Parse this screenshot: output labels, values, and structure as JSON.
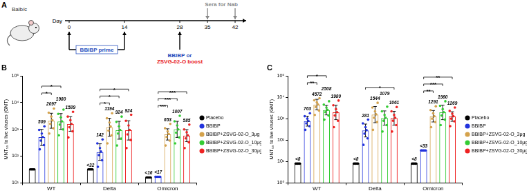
{
  "diagram": {
    "title": "A",
    "subject": "Balb/c",
    "axis_label": "Day",
    "days": [
      0,
      14,
      28,
      35,
      42
    ],
    "sera": {
      "label": "Sera for Nab",
      "days": [
        35,
        42
      ],
      "color": "#888888"
    },
    "prime": {
      "label": "BBIBP prime",
      "days": [
        0,
        14
      ],
      "color": "#2a52be"
    },
    "boost": {
      "day": 28,
      "lines": [
        {
          "text": "BBIBP or",
          "color": "#2a52be"
        },
        {
          "text": "ZSVG-02-O boost",
          "color": "#e8201a"
        }
      ]
    }
  },
  "chart_data": [
    {
      "type": "bar",
      "title": "B",
      "categories": [
        "WT",
        "Delta",
        "Omicron"
      ],
      "y_label": "MNT₅₀ to live viruses (GMT)",
      "log": "y",
      "grid": false,
      "legend": "right",
      "data_labels": true,
      "ylim": [
        10,
        100000
      ],
      "yticks": [
        {
          "value": 10,
          "label": "10¹"
        },
        {
          "value": 100,
          "label": "10²"
        },
        {
          "value": 1000,
          "label": "10³"
        },
        {
          "value": 10000,
          "label": "10⁴"
        },
        {
          "value": 100000,
          "label": "10⁵"
        }
      ],
      "series": [
        {
          "name": "Placebo",
          "color": "#000000",
          "values": [
            32,
            32,
            16
          ],
          "value_labels": [
            null,
            "<32",
            "<16"
          ],
          "points": [
            [
              32,
              32,
              32,
              32,
              32
            ],
            [
              32,
              32,
              32,
              32,
              32
            ],
            [
              16,
              16,
              16,
              16,
              16
            ]
          ]
        },
        {
          "name": "BBIBP",
          "color": "#2233dd",
          "values": [
            509,
            142,
            17
          ],
          "value_labels": [
            "509",
            "142",
            "<17"
          ],
          "error_low": [
            250,
            70,
            null
          ],
          "error_high": [
            1000,
            290,
            null
          ],
          "points": [
            [
              180,
              260,
              380,
              520,
              700,
              950,
              1300
            ],
            [
              40,
              70,
              110,
              150,
              200,
              300,
              420
            ],
            [
              17,
              17,
              17,
              17,
              17,
              17
            ]
          ]
        },
        {
          "name": "BBIBP+ZSVG-02-O_3μg",
          "color": "#d4a24c",
          "values": [
            2097,
            1194,
            653
          ],
          "error_low": [
            1100,
            550,
            400
          ],
          "error_high": [
            4000,
            2600,
            1050
          ],
          "points": [
            [
              700,
              1100,
              1600,
              2200,
              3000,
              4200,
              6000
            ],
            [
              300,
              600,
              900,
              1300,
              1800,
              2600,
              4000
            ],
            [
              250,
              380,
              520,
              680,
              850,
              1100,
              1600
            ]
          ]
        },
        {
          "name": "BBIBP+ZSVG-02-O_10μg",
          "color": "#33cc33",
          "values": [
            1980,
            924,
            1007
          ],
          "error_low": [
            1000,
            430,
            500
          ],
          "error_high": [
            3900,
            2000,
            2000
          ],
          "points": [
            [
              600,
              1000,
              1500,
              2000,
              2800,
              3800,
              5500
            ],
            [
              250,
              450,
              700,
              950,
              1300,
              1900,
              3000
            ],
            [
              300,
              500,
              750,
              1000,
              1400,
              2000,
              3200
            ]
          ]
        },
        {
          "name": "BBIBP+ZSVG-02-O_30μg",
          "color": "#ee2222",
          "values": [
            1589,
            924,
            585
          ],
          "error_low": [
            850,
            400,
            350
          ],
          "error_high": [
            3000,
            2100,
            980
          ],
          "points": [
            [
              500,
              850,
              1200,
              1600,
              2200,
              3000,
              4500
            ],
            [
              200,
              400,
              650,
              950,
              1400,
              2100,
              3500
            ],
            [
              200,
              330,
              460,
              600,
              780,
              1000,
              1500
            ]
          ]
        }
      ],
      "significance": [
        {
          "category": "WT",
          "from": "BBIBP",
          "to": "BBIBP+ZSVG-02-O_3μg",
          "label": "*"
        },
        {
          "category": "WT",
          "from": "BBIBP",
          "to": "BBIBP+ZSVG-02-O_10μg",
          "label": "*"
        },
        {
          "category": "Delta",
          "from": "BBIBP",
          "to": "BBIBP+ZSVG-02-O_3μg",
          "label": "*"
        },
        {
          "category": "Delta",
          "from": "BBIBP",
          "to": "BBIBP+ZSVG-02-O_10μg",
          "label": "*"
        },
        {
          "category": "Delta",
          "from": "BBIBP",
          "to": "BBIBP+ZSVG-02-O_30μg",
          "label": "*"
        },
        {
          "category": "Omicron",
          "from": "BBIBP",
          "to": "BBIBP+ZSVG-02-O_3μg",
          "label": "***"
        },
        {
          "category": "Omicron",
          "from": "BBIBP",
          "to": "BBIBP+ZSVG-02-O_10μg",
          "label": "***"
        },
        {
          "category": "Omicron",
          "from": "BBIBP",
          "to": "BBIBP+ZSVG-02-O_30μg",
          "label": "***"
        }
      ]
    },
    {
      "type": "bar",
      "title": "C",
      "categories": [
        "WT",
        "Delta",
        "Omicron"
      ],
      "y_label": "MNT₅₀ to live viruses (GMT)",
      "log": "y",
      "grid": false,
      "legend": "right",
      "data_labels": true,
      "ylim": [
        1,
        100000
      ],
      "yticks": [
        {
          "value": 1,
          "label": "10⁰"
        },
        {
          "value": 10,
          "label": "10¹"
        },
        {
          "value": 100,
          "label": "10²"
        },
        {
          "value": 1000,
          "label": "10³"
        },
        {
          "value": 10000,
          "label": "10⁴"
        },
        {
          "value": 100000,
          "label": "10⁵"
        }
      ],
      "series": [
        {
          "name": "Placebo",
          "color": "#000000",
          "values": [
            8,
            8,
            8
          ],
          "value_labels": [
            "<8",
            "<8",
            "<8"
          ],
          "points": [
            [
              8,
              8,
              8,
              8,
              8
            ],
            [
              8,
              8,
              8,
              8,
              8
            ],
            [
              8,
              8,
              8,
              8,
              8
            ]
          ]
        },
        {
          "name": "BBIBP",
          "color": "#2233dd",
          "values": [
            763,
            281,
            33
          ],
          "value_labels": [
            "763",
            "281",
            "<33"
          ],
          "error_low": [
            450,
            140,
            null
          ],
          "error_high": [
            1300,
            560,
            null
          ],
          "points": [
            [
              300,
              450,
              600,
              780,
              1000,
              1300,
              1800
            ],
            [
              60,
              120,
              200,
              290,
              400,
              600,
              900
            ],
            [
              33,
              33,
              33,
              33,
              33,
              33
            ]
          ]
        },
        {
          "name": "BBIBP+ZSVG-02-O_3μg",
          "color": "#d4a24c",
          "values": [
            4572,
            1544,
            1291
          ],
          "error_low": [
            2600,
            650,
            700
          ],
          "error_high": [
            8000,
            3700,
            2400
          ],
          "points": [
            [
              1500,
              2400,
              3500,
              4600,
              5800,
              7200,
              9000
            ],
            [
              300,
              700,
              1100,
              1600,
              2200,
              3300,
              5500
            ],
            [
              400,
              700,
              1000,
              1300,
              1800,
              2500,
              3800
            ]
          ]
        },
        {
          "name": "BBIBP+ZSVG-02-O_10μg",
          "color": "#33cc33",
          "values": [
            2508,
            1079,
            1980
          ],
          "error_low": [
            1500,
            500,
            900
          ],
          "error_high": [
            4200,
            2300,
            4300
          ],
          "points": [
            [
              900,
              1400,
              2000,
              2600,
              3300,
              4500,
              6500
            ],
            [
              250,
              500,
              800,
              1100,
              1500,
              2200,
              3600
            ],
            [
              500,
              900,
              1400,
              2000,
              2800,
              4000,
              6500
            ]
          ]
        },
        {
          "name": "BBIBP+ZSVG-02-O_30μg",
          "color": "#ee2222",
          "values": [
            1980,
            1061,
            1269
          ],
          "error_low": [
            900,
            500,
            750
          ],
          "error_high": [
            4300,
            2200,
            2100
          ],
          "points": [
            [
              400,
              800,
              1400,
              2000,
              2800,
              4200,
              7000
            ],
            [
              250,
              500,
              800,
              1100,
              1500,
              2200,
              3500
            ],
            [
              450,
              750,
              1000,
              1300,
              1700,
              2300,
              3300
            ]
          ]
        }
      ],
      "significance": [
        {
          "category": "WT",
          "from": "BBIBP",
          "to": "BBIBP+ZSVG-02-O_3μg",
          "label": "**"
        },
        {
          "category": "WT",
          "from": "BBIBP",
          "to": "BBIBP+ZSVG-02-O_10μg",
          "label": "*"
        },
        {
          "category": "Delta",
          "from": "BBIBP",
          "to": "BBIBP+ZSVG-02-O_30μg",
          "label": "*"
        },
        {
          "category": "Omicron",
          "from": "BBIBP",
          "to": "BBIBP+ZSVG-02-O_3μg",
          "label": "**"
        },
        {
          "category": "Omicron",
          "from": "BBIBP",
          "to": "BBIBP+ZSVG-02-O_10μg",
          "label": "***"
        },
        {
          "category": "Omicron",
          "from": "BBIBP",
          "to": "BBIBP+ZSVG-02-O_30μg",
          "label": "**"
        }
      ]
    }
  ]
}
